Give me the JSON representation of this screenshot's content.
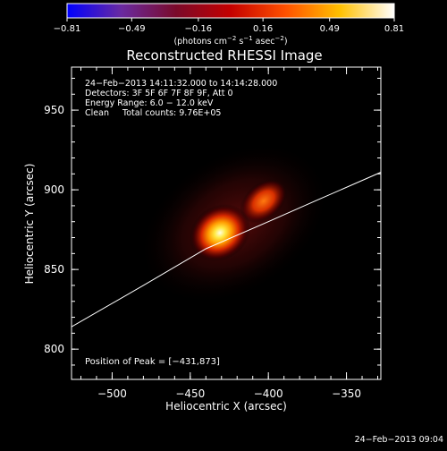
{
  "chart_data": {
    "type": "heatmap",
    "title": "Reconstructed RHESSI Image",
    "xlabel": "Heliocentric X (arcsec)",
    "ylabel": "Heliocentric Y (arcsec)",
    "xlim": [
      -526,
      -328
    ],
    "ylim": [
      781,
      977
    ],
    "xticks": [
      {
        "value": -500,
        "label": "−500"
      },
      {
        "value": -450,
        "label": "−450"
      },
      {
        "value": -400,
        "label": "−400"
      },
      {
        "value": -350,
        "label": "−350"
      }
    ],
    "yticks": [
      {
        "value": 800,
        "label": "800"
      },
      {
        "value": 850,
        "label": "850"
      },
      {
        "value": 900,
        "label": "900"
      },
      {
        "value": 950,
        "label": "950"
      }
    ],
    "colorbar": {
      "min": -0.81,
      "max": 0.81,
      "ticks": [
        {
          "value": -0.81,
          "label": "−0.81"
        },
        {
          "value": -0.49,
          "label": "−0.49"
        },
        {
          "value": -0.16,
          "label": "−0.16"
        },
        {
          "value": 0.16,
          "label": "0.16"
        },
        {
          "value": 0.49,
          "label": "0.49"
        },
        {
          "value": 0.81,
          "label": "0.81"
        }
      ],
      "label_main": "(photons cm",
      "label_sup1": "−2",
      "label_mid1": " s",
      "label_sup2": "−1",
      "label_mid2": " asec",
      "label_sup3": "−2",
      "label_end": ")",
      "stops": [
        "#0000ff",
        "#6a2aa0",
        "#7a0a2a",
        "#c40000",
        "#ff5000",
        "#ffc000",
        "#ffffff"
      ]
    },
    "info_lines": [
      "24−Feb−2013 14:11:32.000 to 14:14:28.000",
      "Detectors: 3F 5F 6F 7F 8F 9F, Att 0",
      "Energy Range: 6.0 − 12.0 keV",
      "Clean     Total counts: 9.76E+05"
    ],
    "peak_label": "Position of Peak = [−431,873]",
    "sources": [
      {
        "name": "main",
        "x": -431,
        "y": 873,
        "peak": 0.81
      },
      {
        "name": "secondary",
        "x": -403,
        "y": 893,
        "peak": 0.52
      }
    ],
    "limb": [
      {
        "x": -526,
        "y": 814
      },
      {
        "x": -480,
        "y": 840
      },
      {
        "x": -440,
        "y": 863
      },
      {
        "x": -400,
        "y": 880
      },
      {
        "x": -370,
        "y": 893
      },
      {
        "x": -328,
        "y": 911
      }
    ],
    "limb_color": "#ffffff"
  },
  "footer": {
    "timestamp": "24−Feb−2013 09:04"
  }
}
